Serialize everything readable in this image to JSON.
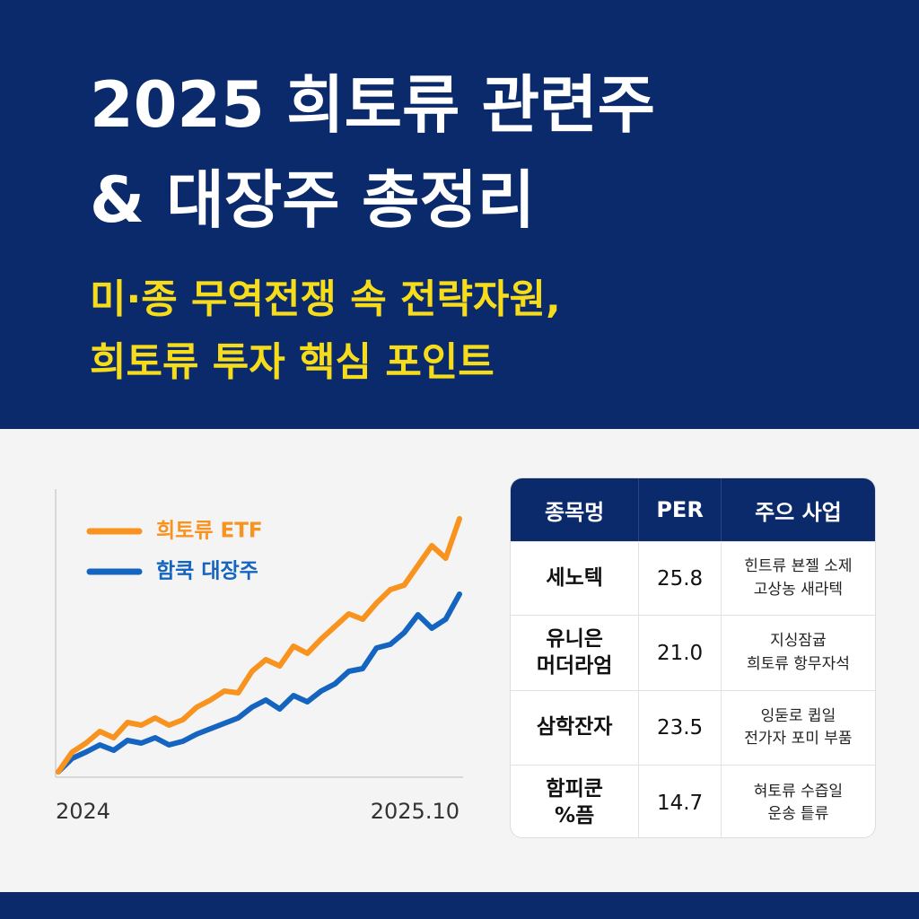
{
  "header": {
    "title": [
      "2025 희토류 관련주",
      "& 대장주 총정리"
    ],
    "subtitle": [
      "미·종 무역전쟁 속 전략자원,",
      "희토류 투자 핵심 포인트"
    ]
  },
  "chart_data": {
    "type": "line",
    "categories": [
      "2024",
      null,
      null,
      null,
      null,
      null,
      null,
      null,
      null,
      null,
      null,
      null,
      null,
      null,
      null,
      null,
      null,
      null,
      null,
      null,
      null,
      null,
      null,
      null,
      null,
      null,
      null,
      null,
      null,
      "2025.10"
    ],
    "series": [
      {
        "name": "희토류 ETF",
        "color": "#f7931e",
        "values": [
          5,
          27,
          37,
          50,
          43,
          60,
          57,
          65,
          57,
          63,
          77,
          85,
          95,
          93,
          117,
          130,
          123,
          145,
          137,
          153,
          167,
          181,
          175,
          193,
          208,
          213,
          235,
          257,
          243,
          287
        ]
      },
      {
        "name": "함쿡 대장주",
        "color": "#1565c0",
        "values": [
          5,
          20,
          27,
          35,
          29,
          40,
          37,
          43,
          35,
          39,
          47,
          53,
          59,
          65,
          77,
          85,
          75,
          90,
          83,
          95,
          103,
          117,
          120,
          143,
          147,
          160,
          180,
          165,
          175,
          203
        ]
      }
    ],
    "ylim": [
      0,
      320
    ]
  },
  "table": {
    "header": [
      "종목멍",
      "PER",
      "주으 사업"
    ],
    "rows": [
      [
        [
          "세노텍"
        ],
        "25.8",
        [
          "힌트류 뵨젤 소제",
          "고상농 새라텍"
        ]
      ],
      [
        [
          "유니은",
          "머더라엄"
        ],
        "21.0",
        [
          "지싱잠귭",
          "희토류 항무자석"
        ]
      ],
      [
        [
          "삼학잔자"
        ],
        "23.5",
        [
          "잉둗로 큅일",
          "전가자 포미 부품"
        ]
      ],
      [
        [
          "함피쿤",
          "%픔"
        ],
        "14.7",
        [
          "혀토류 수즙일",
          "운송 틑류"
        ]
      ]
    ]
  }
}
